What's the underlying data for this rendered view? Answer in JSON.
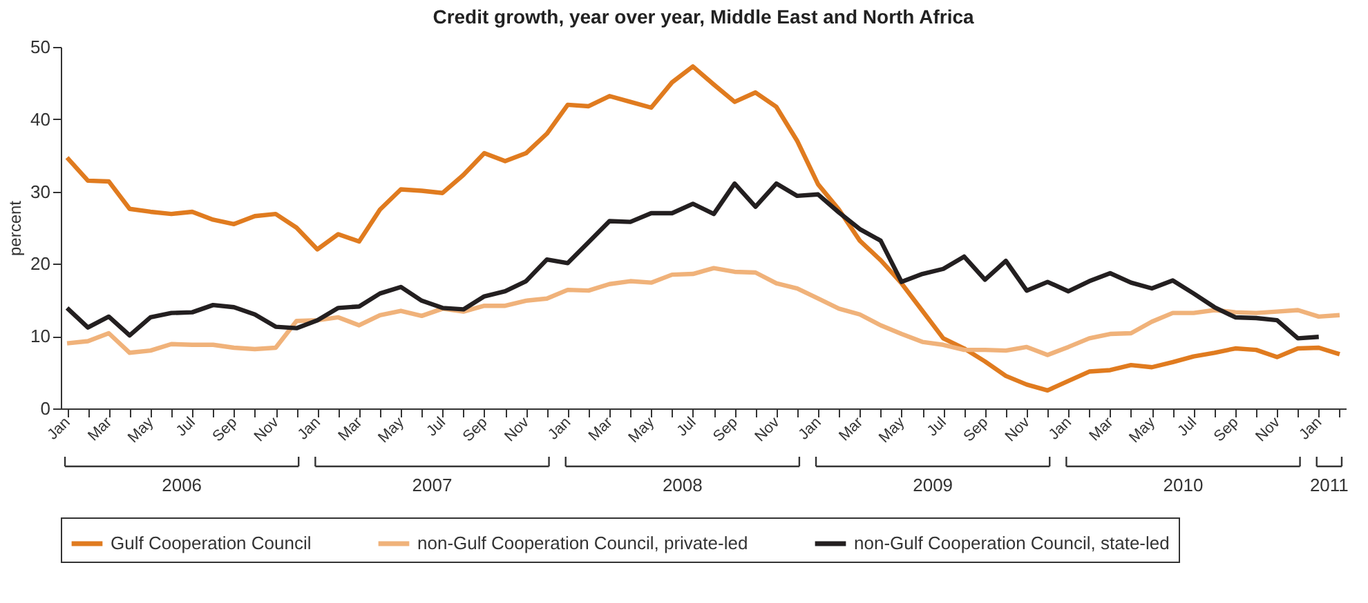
{
  "chart_data": {
    "type": "line",
    "title": "Credit growth, year over year, Middle East and North Africa",
    "ylabel": "percent",
    "categories": [
      "Jan",
      null,
      "Mar",
      null,
      "May",
      null,
      "Jul",
      null,
      "Sep",
      null,
      "Nov",
      null,
      "Jan",
      null,
      "Mar",
      null,
      "May",
      null,
      "Jul",
      null,
      "Sep",
      null,
      "Nov",
      null,
      "Jan",
      null,
      "Mar",
      null,
      "May",
      null,
      "Jul",
      null,
      "Sep",
      null,
      "Nov",
      null,
      "Jan",
      null,
      "Mar",
      null,
      "May",
      null,
      "Jul",
      null,
      "Sep",
      null,
      "Nov",
      null,
      "Jan",
      null,
      "Mar",
      null,
      "May",
      null,
      "Jul",
      null,
      "Sep",
      null,
      "Nov",
      null,
      "Jan",
      null
    ],
    "annotations": [
      "2006",
      "2007",
      "2008",
      "2009",
      "2010",
      "2011"
    ],
    "series": [
      {
        "name": "Gulf Cooperation Council",
        "color": "#e07b1f",
        "values": [
          34.7,
          31.5,
          31.4,
          27.6,
          27.2,
          26.9,
          27.2,
          26.1,
          25.5,
          26.6,
          26.9,
          25.0,
          22.0,
          24.1,
          23.1,
          27.5,
          30.3,
          30.1,
          29.8,
          32.3,
          35.3,
          34.2,
          35.3,
          38.0,
          42.0,
          41.8,
          43.2,
          42.4,
          41.6,
          45.1,
          47.3,
          44.8,
          42.4,
          43.7,
          41.7,
          37.0,
          31.0,
          27.5,
          23.2,
          20.5,
          17.3,
          13.5,
          9.7,
          8.3,
          6.5,
          4.5,
          3.3,
          2.5,
          3.8,
          5.1,
          5.3,
          6.0,
          5.7,
          6.4,
          7.2,
          7.7,
          8.3,
          8.1,
          7.1,
          8.3,
          8.4,
          7.5
        ]
      },
      {
        "name": "non-Gulf Cooperation Council, private-led",
        "color": "#f0b27a",
        "values": [
          9.0,
          9.3,
          10.4,
          7.7,
          8.0,
          8.9,
          8.8,
          8.8,
          8.4,
          8.2,
          8.4,
          12.1,
          12.2,
          12.6,
          11.5,
          12.9,
          13.5,
          12.8,
          13.8,
          13.4,
          14.2,
          14.2,
          14.9,
          15.2,
          16.4,
          16.3,
          17.2,
          17.6,
          17.4,
          18.5,
          18.6,
          19.4,
          18.9,
          18.8,
          17.3,
          16.6,
          15.2,
          13.8,
          13.0,
          11.5,
          10.3,
          9.2,
          8.8,
          8.1,
          8.1,
          8.0,
          8.5,
          7.4,
          8.5,
          9.7,
          10.3,
          10.4,
          12.0,
          13.2,
          13.2,
          13.6,
          13.3,
          13.2,
          13.4,
          13.6,
          12.7,
          12.9
        ]
      },
      {
        "name": "non-Gulf Cooperation Council, state-led",
        "color": "#231f20",
        "values": [
          13.9,
          11.2,
          12.7,
          10.1,
          12.6,
          13.2,
          13.3,
          14.3,
          14.0,
          13.0,
          11.3,
          11.1,
          12.2,
          13.9,
          14.1,
          15.9,
          16.8,
          14.9,
          13.9,
          13.7,
          15.5,
          16.2,
          17.6,
          20.6,
          20.1,
          23.0,
          25.9,
          25.8,
          27.0,
          27.0,
          28.3,
          26.9,
          31.1,
          27.9,
          31.1,
          29.4,
          29.6,
          27.1,
          24.8,
          23.2,
          17.5,
          18.6,
          19.3,
          21.0,
          17.8,
          20.4,
          16.3,
          17.5,
          16.2,
          17.6,
          18.7,
          17.4,
          16.6,
          17.7,
          15.9,
          14.0,
          12.6,
          12.5,
          12.2,
          9.7,
          9.9,
          null
        ]
      }
    ],
    "ylim": [
      0,
      50
    ],
    "yticks": [
      0,
      10,
      20,
      30,
      40,
      50
    ],
    "grid": false,
    "legend": "bottom",
    "marker": "none",
    "line_style": "solid"
  }
}
